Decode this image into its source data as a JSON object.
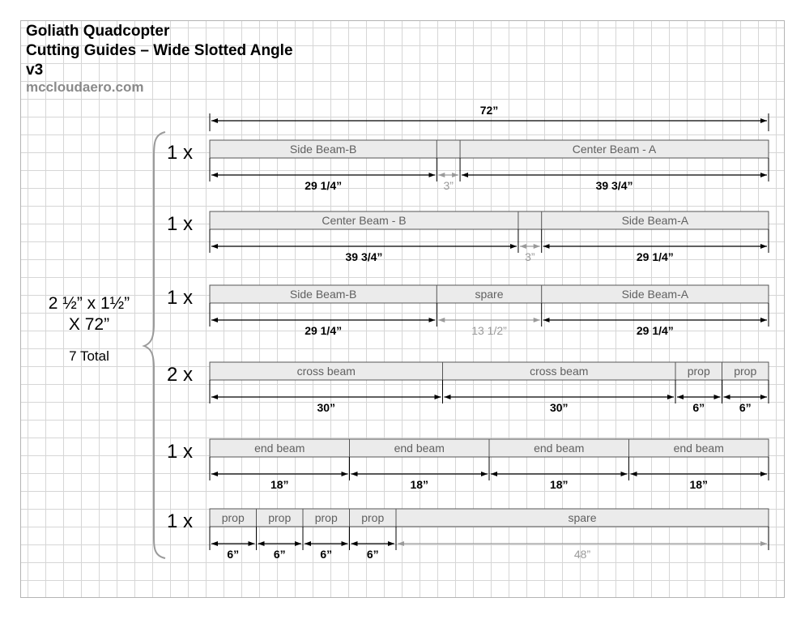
{
  "header": {
    "line1": "Goliath Quadcopter",
    "line2": "Cutting Guides – Wide Slotted Angle",
    "line3": "v3",
    "site": "mccloudaero.com"
  },
  "stock": {
    "line1": "2 ½” x 1½”",
    "line2": "X 72”",
    "total": "7 Total"
  },
  "overall_label": "72”",
  "rows": [
    {
      "qty": "1 x",
      "segments": [
        {
          "label": "Side Beam-B",
          "length": 29.25,
          "dim": "29 1/4”",
          "muted": false
        },
        {
          "label": "",
          "length": 3,
          "dim": "3”",
          "muted": true
        },
        {
          "label": "Center Beam - A",
          "length": 39.75,
          "dim": "39 3/4”",
          "muted": false
        }
      ]
    },
    {
      "qty": "1 x",
      "segments": [
        {
          "label": "Center Beam - B",
          "length": 39.75,
          "dim": "39 3/4”",
          "muted": false
        },
        {
          "label": "",
          "length": 3,
          "dim": "3”",
          "muted": true
        },
        {
          "label": "Side Beam-A",
          "length": 29.25,
          "dim": "29 1/4”",
          "muted": false
        }
      ]
    },
    {
      "qty": "1 x",
      "segments": [
        {
          "label": "Side Beam-B",
          "length": 29.25,
          "dim": "29 1/4”",
          "muted": false
        },
        {
          "label": "spare",
          "length": 13.5,
          "dim": "13 1/2”",
          "muted": true
        },
        {
          "label": "Side Beam-A",
          "length": 29.25,
          "dim": "29 1/4”",
          "muted": false
        }
      ]
    },
    {
      "qty": "2 x",
      "segments": [
        {
          "label": "cross beam",
          "length": 30,
          "dim": "30”",
          "muted": false
        },
        {
          "label": "cross beam",
          "length": 30,
          "dim": "30”",
          "muted": false
        },
        {
          "label": "prop",
          "length": 6,
          "dim": "6”",
          "muted": false
        },
        {
          "label": "prop",
          "length": 6,
          "dim": "6”",
          "muted": false
        }
      ]
    },
    {
      "qty": "1 x",
      "segments": [
        {
          "label": "end beam",
          "length": 18,
          "dim": "18”",
          "muted": false
        },
        {
          "label": "end beam",
          "length": 18,
          "dim": "18”",
          "muted": false
        },
        {
          "label": "end beam",
          "length": 18,
          "dim": "18”",
          "muted": false
        },
        {
          "label": "end beam",
          "length": 18,
          "dim": "18”",
          "muted": false
        }
      ]
    },
    {
      "qty": "1 x",
      "segments": [
        {
          "label": "prop",
          "length": 6,
          "dim": "6”",
          "muted": false
        },
        {
          "label": "prop",
          "length": 6,
          "dim": "6”",
          "muted": false
        },
        {
          "label": "prop",
          "length": 6,
          "dim": "6”",
          "muted": false
        },
        {
          "label": "prop",
          "length": 6,
          "dim": "6”",
          "muted": false
        },
        {
          "label": "spare",
          "length": 48,
          "dim": "48”",
          "muted": true
        }
      ]
    }
  ]
}
